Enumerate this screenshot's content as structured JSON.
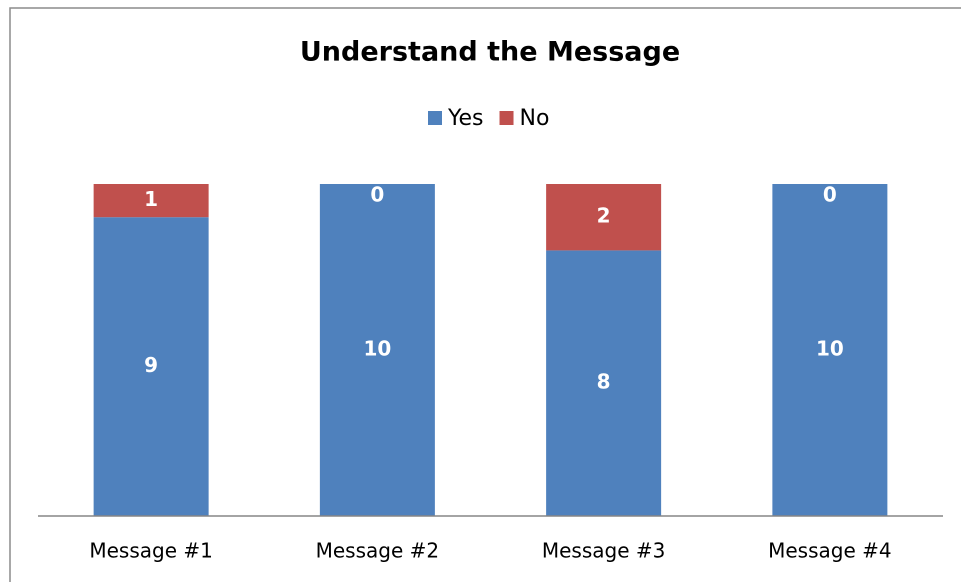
{
  "chart_data": {
    "type": "stacked-bar",
    "title": "Understand the Message",
    "categories": [
      "Message #1",
      "Message #2",
      "Message #3",
      "Message #4"
    ],
    "series": [
      {
        "name": "Yes",
        "color": "#4f81bd",
        "values": [
          9,
          10,
          8,
          10
        ]
      },
      {
        "name": "No",
        "color": "#c0504d",
        "values": [
          1,
          0,
          2,
          0
        ]
      }
    ],
    "legend": "top"
  }
}
